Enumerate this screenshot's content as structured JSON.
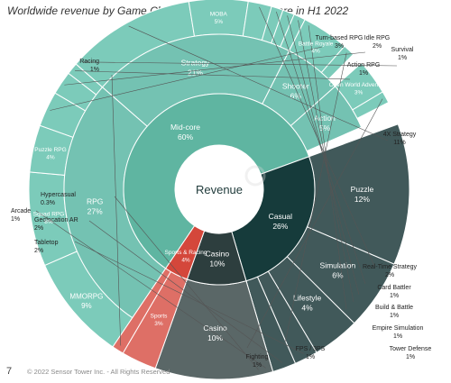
{
  "page": {
    "title": "Worldwide revenue by Game Class, Genre, and Sub-Genre in H1 2022",
    "page_number": "7",
    "copyright": "© 2022 Sensor Tower Inc. - All Rights Reserved"
  },
  "chart_data": {
    "type": "sunburst",
    "title": "Worldwide revenue by Game Class, Genre, and Sub-Genre in H1 2022",
    "center_label": "Revenue",
    "unit": "%",
    "colors": {
      "Mid-core": "#5fb5a1",
      "Casual": "#163b3b",
      "Casino": "#2d3e3e",
      "Sports & Racing": "#d4473b",
      "mid_core_genre": "#74c2b2",
      "casual_genre": "#41595a",
      "casino_genre": "#5a6767",
      "sports_genre": "#de6f66",
      "mid_core_sub": "#7ccbba",
      "watermark": "#d8d8d8"
    },
    "classes": [
      {
        "name": "Mid-core",
        "value": 60,
        "label": "Mid-core",
        "value_label": "60%",
        "genres": [
          {
            "name": "RPG",
            "value": 27,
            "label": "RPG",
            "value_label": "27%",
            "subgenres": [
              {
                "name": "MMORPG",
                "value": 9,
                "label": "MMORPG",
                "value_label": "9%"
              },
              {
                "name": "Squad RPG",
                "value": 8,
                "label": "Squad RPG",
                "value_label": "8%"
              },
              {
                "name": "Puzzle RPG",
                "value": 4,
                "label": "Puzzle RPG",
                "value_label": "4%"
              },
              {
                "name": "Turn-based RPG",
                "value": 3,
                "label": "Turn-based RPG",
                "value_label": "3%"
              },
              {
                "name": "Idle RPG",
                "value": 2,
                "label": "Idle RPG",
                "value_label": "2%"
              },
              {
                "name": "Action RPG",
                "value": 1,
                "label": "Action RPG",
                "value_label": "1%"
              },
              {
                "name": "Survival",
                "value": 1,
                "label": "Survival",
                "value_label": "1%"
              }
            ]
          },
          {
            "name": "Strategy",
            "value": 21,
            "label": "Strategy",
            "value_label": "21%",
            "subgenres": [
              {
                "name": "4X Strategy",
                "value": 11,
                "label": "4X Strategy",
                "value_label": "11%"
              },
              {
                "name": "MOBA",
                "value": 5,
                "label": "MOBA",
                "value_label": "5%"
              },
              {
                "name": "Real-Time Strategy",
                "value": 2,
                "label": "Real-Time Strategy",
                "value_label": "2%"
              },
              {
                "name": "Card Battler",
                "value": 1,
                "label": "Card Battler",
                "value_label": "1%"
              },
              {
                "name": "Build & Battle",
                "value": 1,
                "label": "Build & Battle",
                "value_label": "1%"
              },
              {
                "name": "Empire Simulation",
                "value": 1,
                "label": "Empire Simulation",
                "value_label": "1%"
              },
              {
                "name": "Tower Defense",
                "value": 1,
                "label": "Tower Defense",
                "value_label": "1%"
              }
            ]
          },
          {
            "name": "Shooter",
            "value": 6,
            "label": "Shooter",
            "value_label": "6%",
            "subgenres": [
              {
                "name": "Battle Royale",
                "value": 4,
                "label": "Battle Royale",
                "value_label": "4%"
              },
              {
                "name": "FPS / 3PS",
                "value": 1,
                "label": "FPS / 3PS",
                "value_label": "1%"
              }
            ]
          },
          {
            "name": "Action",
            "value": 5,
            "label": "Action",
            "value_label": "5%",
            "subgenres": [
              {
                "name": "Open World Adventure",
                "value": 3,
                "label": "Open World Adventure",
                "value_label": "3%"
              },
              {
                "name": "Fighting",
                "value": 1,
                "label": "Fighting",
                "value_label": "1%"
              }
            ]
          }
        ]
      },
      {
        "name": "Casual",
        "value": 26,
        "label": "Casual",
        "value_label": "26%",
        "genres": [
          {
            "name": "Puzzle",
            "value": 12,
            "label": "Puzzle",
            "value_label": "12%"
          },
          {
            "name": "Simulation",
            "value": 6,
            "label": "Simulation",
            "value_label": "6%"
          },
          {
            "name": "Lifestyle",
            "value": 4,
            "label": "Lifestyle",
            "value_label": "4%"
          },
          {
            "name": "Tabletop",
            "value": 2,
            "label": "Tabletop",
            "value_label": "2%"
          },
          {
            "name": "Geolocation AR",
            "value": 2,
            "label": "Geolocation AR",
            "value_label": "2%"
          },
          {
            "name": "Arcade",
            "value": 1,
            "label": "Arcade",
            "value_label": "1%"
          },
          {
            "name": "Hypercasual",
            "value": 0.3,
            "label": "Hypercasual",
            "value_label": "0.3%"
          }
        ]
      },
      {
        "name": "Casino",
        "value": 10,
        "label": "Casino",
        "value_label": "10%",
        "genres": [
          {
            "name": "Casino",
            "value": 10,
            "label": "Casino",
            "value_label": "10%"
          }
        ]
      },
      {
        "name": "Sports & Racing",
        "value": 4,
        "label": "Sports & Racing",
        "value_label": "4%",
        "genres": [
          {
            "name": "Sports",
            "value": 3,
            "label": "Sports",
            "value_label": "3%"
          },
          {
            "name": "Racing",
            "value": 1,
            "label": "Racing",
            "value_label": "1%"
          }
        ]
      }
    ]
  }
}
